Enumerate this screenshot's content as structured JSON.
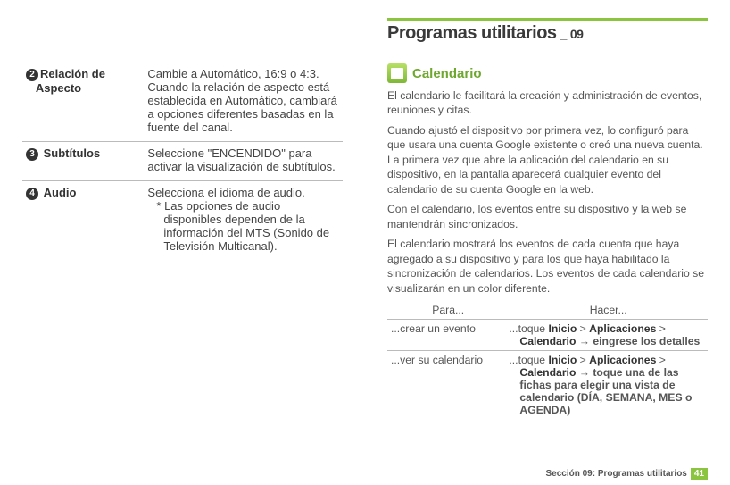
{
  "left": {
    "rows": [
      {
        "num": "2",
        "key_indent": true,
        "key": "Relación de Aspecto",
        "key_bold_all": false,
        "desc": "Cambie a Automático, 16:9 o 4:3. Cuando la relación de aspecto está establecida en Automático, cambiará a opciones diferentes basadas en la fuente del canal."
      },
      {
        "num": "3",
        "key": "Subtítulos",
        "key_bold_all": true,
        "desc": "Seleccione \"ENCENDIDO\" para activar la visualización de subtítulos."
      },
      {
        "num": "4",
        "key": "Audio",
        "key_bold_all": true,
        "desc": "Selecciona el idioma de audio.",
        "note": "* Las opciones de audio disponibles dependen de la información del MTS (Sonido de Televisión Multicanal)."
      }
    ]
  },
  "right": {
    "section_title": "Programas utilitarios",
    "section_sub": "_",
    "section_num": "09",
    "cal_title": "Calendario",
    "paragraphs": [
      "El calendario le facilitará la creación y administración de eventos, reuniones y citas.",
      "Cuando ajustó el dispositivo por primera vez, lo configuró para que usara una cuenta Google existente o creó una nueva cuenta. La primera vez que abre la aplicación del calendario en su dispositivo, en la pantalla aparecerá cualquier evento del calendario de su cuenta Google en la web.",
      "Con el calendario, los eventos entre su dispositivo y la web se mantendrán sincronizados.",
      "El calendario mostrará los eventos de cada cuenta que haya agregado a su dispositivo y para los que haya habilitado la sincronización de calendarios. Los eventos de cada calendario se visualizarán en un color diferente."
    ],
    "howto": {
      "head_para": "Para...",
      "head_hacer": "Hacer...",
      "rows": [
        {
          "para": "...crear un evento",
          "pre": "...toque ",
          "b1": "Inicio",
          "sep1": " > ",
          "b2": "Aplicaciones",
          "sep2": " > ",
          "b3": "Calendario",
          "post": " → eingrese los detalles"
        },
        {
          "para": "...ver su calendario",
          "pre": "...toque ",
          "b1": "Inicio",
          "sep1": " > ",
          "b2": "Aplicaciones",
          "sep2": " > ",
          "b3": "Calendario",
          "post": " → toque una de las fichas para elegir una vista de calendario (DÍA, SEMANA, MES o AGENDA)"
        }
      ]
    },
    "footer_text": "Sección 09: Programas utilitarios",
    "footer_page": "41"
  }
}
